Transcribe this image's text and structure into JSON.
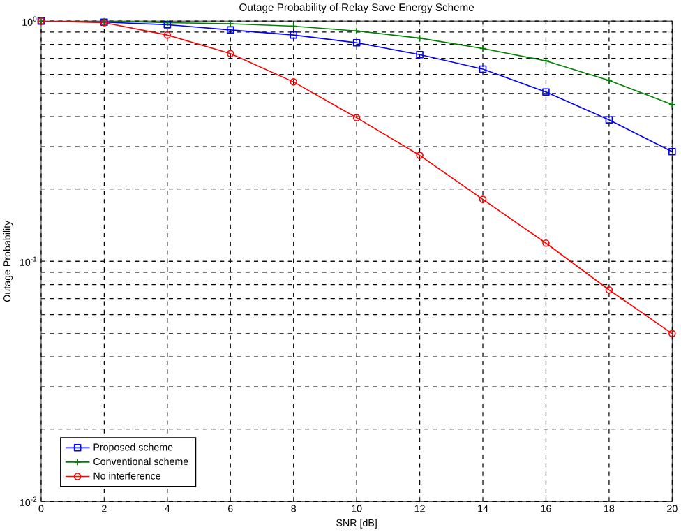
{
  "chart_data": {
    "type": "line",
    "title": "Outage Probability of Relay Save Energy Scheme",
    "xlabel": "SNR [dB]",
    "ylabel": "Outage Probability",
    "log": "y",
    "grid": true,
    "line_style": "solid",
    "legend": "bottom left",
    "x": [
      0,
      2,
      4,
      6,
      8,
      10,
      12,
      14,
      16,
      18,
      20
    ],
    "xlim": [
      0,
      20
    ],
    "xticks": [
      0,
      2,
      4,
      6,
      8,
      10,
      12,
      14,
      16,
      18,
      20
    ],
    "ylim": [
      0.01,
      1
    ],
    "yticks": [
      {
        "value": 0.01,
        "label": "10$^{-2}$"
      },
      {
        "value": 0.1,
        "label": "10$^{-1}$"
      },
      {
        "value": 1,
        "label": "10$^{0}$"
      }
    ],
    "series": [
      {
        "name": "Proposed scheme",
        "color": "#0000ff",
        "marker": "square",
        "values": [
          1.0,
          0.99,
          0.966,
          0.919,
          0.875,
          0.812,
          0.725,
          0.631,
          0.507,
          0.388,
          0.286
        ]
      },
      {
        "name": "Conventional scheme",
        "color": "#008000",
        "marker": "cross",
        "values": [
          1.0,
          1.0,
          0.985,
          0.975,
          0.952,
          0.91,
          0.849,
          0.769,
          0.683,
          0.566,
          0.449
        ]
      },
      {
        "name": "No interference",
        "color": "#ff0000",
        "marker": "circle",
        "values": [
          1.0,
          0.985,
          0.875,
          0.732,
          0.558,
          0.396,
          0.276,
          0.181,
          0.119,
          0.076,
          0.05
        ]
      }
    ]
  }
}
